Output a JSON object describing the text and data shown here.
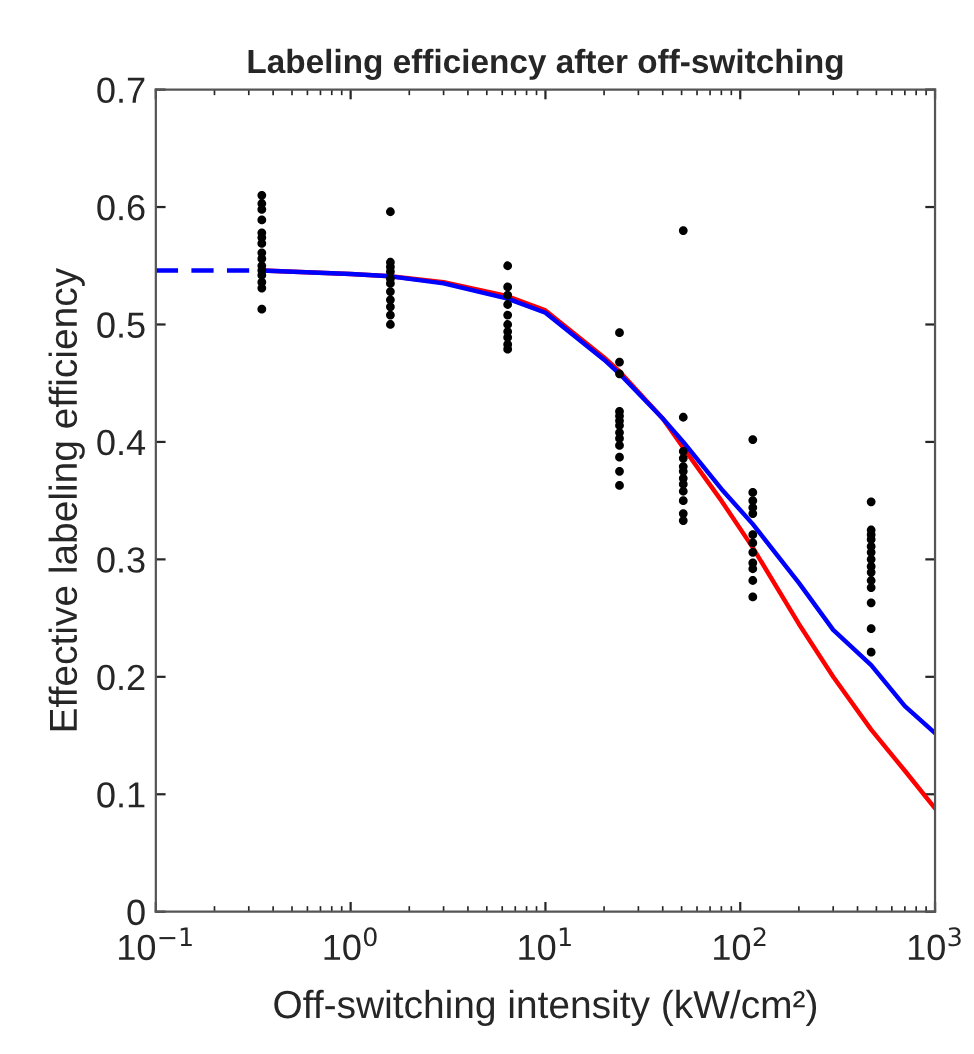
{
  "chart_data": {
    "type": "scatter",
    "title": "Labeling efficiency after off-switching",
    "xlabel": "Off-switching intensity (kW/cm²)",
    "ylabel": "Effective labeling efficiency",
    "log": "x",
    "xlim": [
      0.1,
      1000
    ],
    "xticks": [
      {
        "value": 0.1,
        "label": "10$^{−1}$"
      },
      {
        "value": 1,
        "label": "10$^{0}$"
      },
      {
        "value": 10,
        "label": "10$^{1}$"
      },
      {
        "value": 100,
        "label": "10$^{2}$"
      },
      {
        "value": 1000,
        "label": "10$^{3}$"
      }
    ],
    "ylim": [
      0,
      0.7
    ],
    "yticks": [
      0,
      0.1,
      0.2,
      0.3,
      0.4,
      0.5,
      0.6,
      0.7
    ],
    "grid": false,
    "series": [
      {
        "color": "#000000",
        "marker": "circle",
        "x": [
          0.35,
          0.35,
          0.35,
          0.35,
          0.35,
          0.35,
          0.35,
          0.35,
          0.35,
          0.35,
          0.35,
          0.35,
          0.35,
          0.35,
          0.35,
          1.6,
          1.6,
          1.6,
          1.6,
          1.6,
          1.6,
          1.6,
          1.6,
          1.6,
          1.6,
          1.6,
          6.4,
          6.4,
          6.4,
          6.4,
          6.4,
          6.4,
          6.4,
          6.4,
          6.4,
          6.4,
          24,
          24,
          24,
          24,
          24,
          24,
          24,
          24,
          24,
          24,
          24,
          24,
          24,
          51,
          51,
          51,
          51,
          51,
          51,
          51,
          51,
          51,
          51,
          51,
          51,
          116,
          116,
          116,
          116,
          116,
          116,
          116,
          116,
          116,
          116,
          116,
          116,
          470,
          470,
          470,
          470,
          470,
          470,
          470,
          470,
          470,
          470,
          470,
          470,
          470,
          470
        ],
        "values": [
          0.61,
          0.603,
          0.598,
          0.589,
          0.578,
          0.574,
          0.569,
          0.561,
          0.556,
          0.55,
          0.546,
          0.542,
          0.536,
          0.531,
          0.513,
          0.596,
          0.553,
          0.549,
          0.545,
          0.539,
          0.535,
          0.528,
          0.521,
          0.515,
          0.508,
          0.5,
          0.55,
          0.532,
          0.525,
          0.517,
          0.508,
          0.5,
          0.494,
          0.489,
          0.483,
          0.479,
          0.493,
          0.468,
          0.458,
          0.426,
          0.422,
          0.418,
          0.414,
          0.408,
          0.403,
          0.397,
          0.387,
          0.375,
          0.363,
          0.58,
          0.421,
          0.392,
          0.386,
          0.379,
          0.375,
          0.369,
          0.364,
          0.358,
          0.35,
          0.339,
          0.333,
          0.402,
          0.357,
          0.35,
          0.344,
          0.339,
          0.321,
          0.314,
          0.306,
          0.297,
          0.292,
          0.282,
          0.268,
          0.349,
          0.325,
          0.321,
          0.317,
          0.311,
          0.306,
          0.3,
          0.294,
          0.289,
          0.282,
          0.276,
          0.263,
          0.241,
          0.221
        ]
      },
      {
        "type": "line",
        "color": "#ff0000",
        "line_style": "solid",
        "x": [
          0.35,
          1,
          1.6,
          3,
          6.4,
          10,
          20,
          24,
          40,
          51,
          80,
          116,
          200,
          300,
          470,
          700,
          1000
        ],
        "values": [
          0.546,
          0.543,
          0.541,
          0.536,
          0.524,
          0.512,
          0.472,
          0.46,
          0.42,
          0.395,
          0.35,
          0.31,
          0.245,
          0.2,
          0.155,
          0.12,
          0.088
        ]
      },
      {
        "type": "line",
        "color": "#0000ff",
        "line_style": "dashed",
        "x": [
          0.1,
          0.2,
          0.35
        ],
        "values": [
          0.546,
          0.546,
          0.546
        ]
      },
      {
        "type": "line",
        "color": "#0000ff",
        "line_style": "solid",
        "x": [
          0.35,
          1,
          1.6,
          3,
          6.4,
          10,
          20,
          24,
          40,
          51,
          80,
          116,
          200,
          300,
          470,
          700,
          1000
        ],
        "values": [
          0.546,
          0.543,
          0.541,
          0.535,
          0.522,
          0.51,
          0.47,
          0.458,
          0.42,
          0.4,
          0.36,
          0.33,
          0.28,
          0.24,
          0.21,
          0.175,
          0.152
        ]
      }
    ]
  }
}
